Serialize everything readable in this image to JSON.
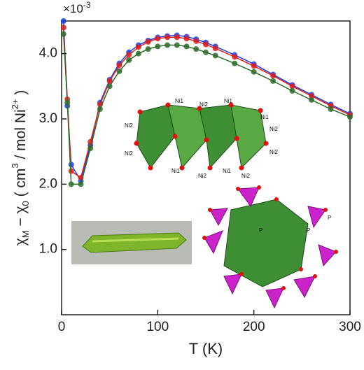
{
  "chart_data": {
    "type": "line",
    "multiplier": "×10",
    "multiplier_exp": "-3",
    "y_label_parts": [
      "χ",
      "M",
      " − χ",
      "0",
      " ( cm",
      "3",
      " / mol Ni",
      "2+",
      " )"
    ],
    "x_label": "T (K)",
    "x": [
      2,
      6,
      10,
      20,
      30,
      40,
      50,
      60,
      70,
      80,
      90,
      100,
      110,
      120,
      130,
      140,
      150,
      160,
      180,
      200,
      220,
      240,
      260,
      280,
      300
    ],
    "series": [
      {
        "name": "blue",
        "color": "#1f3fe0",
        "values": [
          4.5,
          3.2,
          2.3,
          2.05,
          2.6,
          3.25,
          3.6,
          3.85,
          4.02,
          4.13,
          4.2,
          4.25,
          4.27,
          4.28,
          4.26,
          4.22,
          4.17,
          4.11,
          3.98,
          3.84,
          3.68,
          3.52,
          3.37,
          3.22,
          3.08
        ]
      },
      {
        "name": "red",
        "color": "#e0201c",
        "values": [
          4.4,
          3.3,
          2.2,
          2.1,
          2.65,
          3.22,
          3.58,
          3.82,
          3.98,
          4.1,
          4.18,
          4.23,
          4.25,
          4.25,
          4.23,
          4.19,
          4.14,
          4.08,
          3.95,
          3.81,
          3.66,
          3.5,
          3.35,
          3.2,
          3.06
        ]
      },
      {
        "name": "green",
        "color": "#2e6b2a",
        "values": [
          4.3,
          3.25,
          2.0,
          2.0,
          2.55,
          3.15,
          3.5,
          3.73,
          3.9,
          4.0,
          4.07,
          4.11,
          4.13,
          4.13,
          4.11,
          4.07,
          4.02,
          3.97,
          3.85,
          3.72,
          3.58,
          3.43,
          3.29,
          3.15,
          3.03
        ]
      }
    ],
    "xlim": [
      0,
      300
    ],
    "xticks": [
      0,
      100,
      200,
      300
    ],
    "ylim": [
      0,
      4.5
    ],
    "yticks": [
      {
        "value": 1,
        "label": "1.0"
      },
      {
        "value": 2,
        "label": "2.0"
      },
      {
        "value": 3,
        "label": "3.0"
      },
      {
        "value": 4,
        "label": "4.0"
      }
    ],
    "annotations": [
      "Ni1",
      "Ni2",
      "Ni1",
      "Ni2",
      "Ni1",
      "Ni2",
      "Ni2",
      "Ni2",
      "Ni1",
      "Ni2",
      "Ni1",
      "Ni2",
      "P",
      "P",
      "P"
    ]
  }
}
